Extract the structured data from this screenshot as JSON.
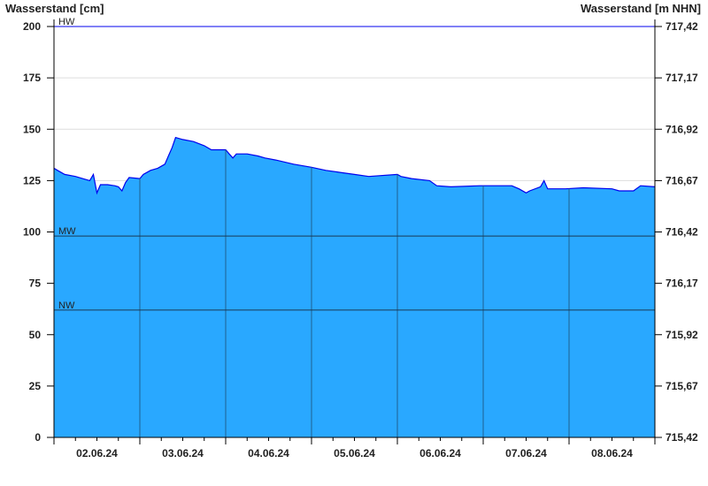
{
  "chart_data": {
    "type": "area",
    "ylabel_left": "Wasserstand [cm]",
    "ylabel_right": "Wasserstand [m NHN]",
    "ylim": [
      0,
      200
    ],
    "yticks": [
      0,
      25,
      50,
      75,
      100,
      125,
      150,
      175,
      200
    ],
    "yticks_right": [
      "715,42",
      "715,67",
      "715,92",
      "716,17",
      "716,42",
      "716,67",
      "716,92",
      "717,17",
      "717,42"
    ],
    "xlim": [
      "02.06.24 00:00",
      "09.06.24 00:00"
    ],
    "xtick_labels": [
      "02.06.24",
      "03.06.24",
      "04.06.24",
      "05.06.24",
      "06.06.24",
      "07.06.24",
      "08.06.24"
    ],
    "grid": true,
    "reference_lines": [
      {
        "label": "HW",
        "value": 200
      },
      {
        "label": "MW",
        "value": 98
      },
      {
        "label": "NW",
        "value": 62
      }
    ],
    "colors": {
      "fill": "#29a8ff",
      "line": "#0000ee",
      "hw": "#0000ee",
      "grid": "#dddddd",
      "day_line": "#1f5f8f"
    },
    "series": [
      {
        "points": [
          [
            "02.06.24 00:00",
            131
          ],
          [
            "02.06.24 01:00",
            130
          ],
          [
            "02.06.24 03:00",
            128
          ],
          [
            "02.06.24 06:00",
            127
          ],
          [
            "02.06.24 08:00",
            126
          ],
          [
            "02.06.24 10:00",
            125
          ],
          [
            "02.06.24 11:00",
            128
          ],
          [
            "02.06.24 12:00",
            119
          ],
          [
            "02.06.24 13:00",
            123
          ],
          [
            "02.06.24 15:00",
            123
          ],
          [
            "02.06.24 17:00",
            122.5
          ],
          [
            "02.06.24 18:00",
            122
          ],
          [
            "02.06.24 19:00",
            120
          ],
          [
            "02.06.24 20:00",
            124
          ],
          [
            "02.06.24 21:00",
            126.5
          ],
          [
            "03.06.24 00:00",
            126
          ],
          [
            "03.06.24 01:00",
            128
          ],
          [
            "03.06.24 03:00",
            130
          ],
          [
            "03.06.24 05:00",
            131
          ],
          [
            "03.06.24 07:00",
            133
          ],
          [
            "03.06.24 08:00",
            137
          ],
          [
            "03.06.24 09:00",
            141
          ],
          [
            "03.06.24 10:00",
            146
          ],
          [
            "03.06.24 12:00",
            145
          ],
          [
            "03.06.24 15:00",
            144
          ],
          [
            "03.06.24 18:00",
            142
          ],
          [
            "03.06.24 20:00",
            140
          ],
          [
            "04.06.24 00:00",
            140
          ],
          [
            "04.06.24 01:00",
            138
          ],
          [
            "04.06.24 02:00",
            136
          ],
          [
            "04.06.24 03:00",
            138
          ],
          [
            "04.06.24 06:00",
            138
          ],
          [
            "04.06.24 09:00",
            137
          ],
          [
            "04.06.24 11:00",
            136
          ],
          [
            "04.06.24 14:00",
            135
          ],
          [
            "04.06.24 19:00",
            133
          ],
          [
            "05.06.24 00:00",
            131.5
          ],
          [
            "05.06.24 04:00",
            130
          ],
          [
            "05.06.24 08:00",
            129
          ],
          [
            "05.06.24 12:00",
            128
          ],
          [
            "05.06.24 16:00",
            127
          ],
          [
            "06.06.24 00:00",
            128
          ],
          [
            "06.06.24 01:00",
            127
          ],
          [
            "06.06.24 04:00",
            126
          ],
          [
            "06.06.24 09:00",
            125
          ],
          [
            "06.06.24 11:00",
            122.5
          ],
          [
            "06.06.24 15:00",
            122
          ],
          [
            "06.06.24 23:00",
            122.5
          ],
          [
            "07.06.24 08:00",
            122.5
          ],
          [
            "07.06.24 10:00",
            121
          ],
          [
            "07.06.24 12:00",
            119
          ],
          [
            "07.06.24 13:00",
            120
          ],
          [
            "07.06.24 16:00",
            122
          ],
          [
            "07.06.24 17:00",
            125
          ],
          [
            "07.06.24 18:00",
            121
          ],
          [
            "07.06.24 23:00",
            121
          ],
          [
            "08.06.24 04:00",
            121.5
          ],
          [
            "08.06.24 12:00",
            121
          ],
          [
            "08.06.24 14:00",
            120
          ],
          [
            "08.06.24 18:00",
            120
          ],
          [
            "08.06.24 20:00",
            122.5
          ],
          [
            "09.06.24 00:00",
            122
          ]
        ]
      }
    ]
  }
}
